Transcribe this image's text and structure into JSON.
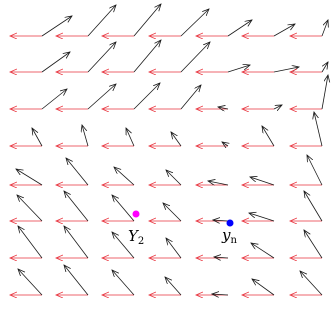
{
  "colors": {
    "red_arrow": "#e8323c",
    "black_arrow": "#1a1a1a",
    "point_magenta": "#ff00ff",
    "point_blue": "#0000ff"
  },
  "points": [
    {
      "id": "Y2",
      "label_main": "Y",
      "label_sub": "2",
      "color": "magenta"
    },
    {
      "id": "yn",
      "label_main": "y",
      "label_sub": "n",
      "color": "blue"
    }
  ]
}
